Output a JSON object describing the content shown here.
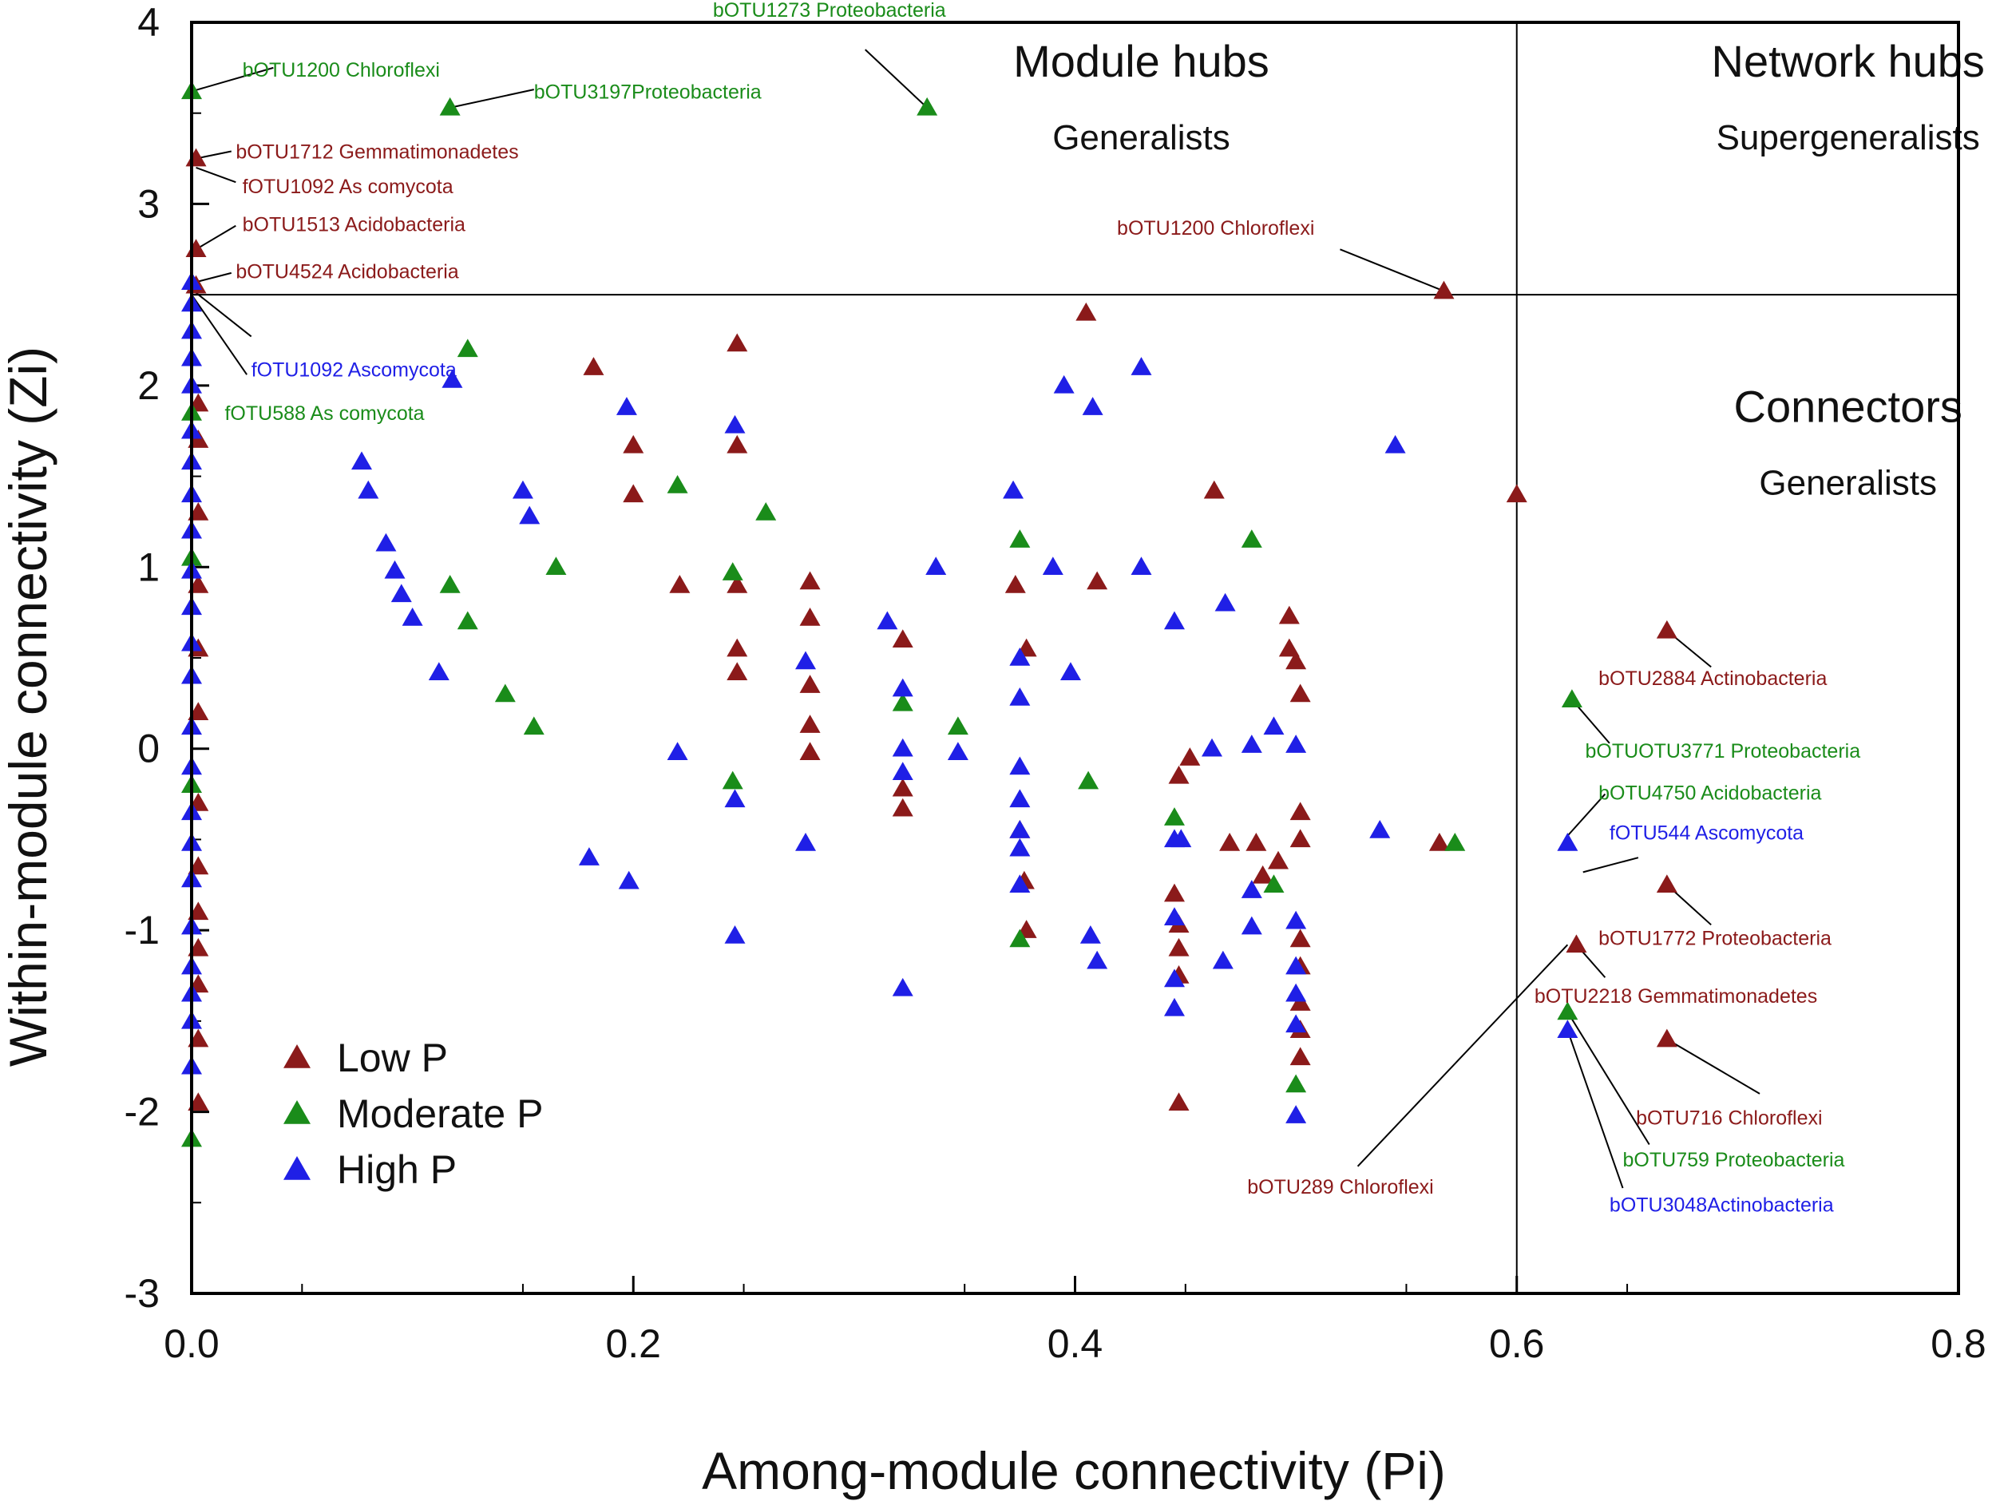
{
  "chart_data": {
    "type": "scatter",
    "xlabel": "Among-module connectivity (Pi)",
    "ylabel": "Within-module connectivity (Zi)",
    "xlim": [
      0,
      0.8
    ],
    "ylim": [
      -3,
      4
    ],
    "x_ticks": [
      "0.0",
      "0.2",
      "0.4",
      "0.6",
      "0.8"
    ],
    "y_ticks": [
      "-3",
      "-2",
      "-1",
      "0",
      "1",
      "2",
      "3",
      "4"
    ],
    "thresholds": {
      "pi": 0.6,
      "zi": 2.5
    },
    "regions": [
      {
        "title": "Module hubs",
        "subtitle": "Generalists",
        "x": 0.43,
        "y": 3.7,
        "y_sub": 3.3
      },
      {
        "title": "Network hubs",
        "subtitle": "Supergeneralists",
        "x": 0.75,
        "y": 3.7,
        "y_sub": 3.3
      },
      {
        "title": "Connectors",
        "subtitle": "Generalists",
        "x": 0.75,
        "y": 1.8,
        "y_sub": 1.4
      }
    ],
    "legend": {
      "position": "bottom-left",
      "entries": [
        {
          "label": "Low P",
          "color": "#8b1a1a"
        },
        {
          "label": "Moderate P",
          "color": "#1a8c1a"
        },
        {
          "label": "High P",
          "color": "#1f1fe6"
        }
      ]
    },
    "series": [
      {
        "name": "Low P",
        "color": "#8b1a1a",
        "points": [
          [
            0.002,
            3.25
          ],
          [
            0.002,
            2.75
          ],
          [
            0.002,
            2.55
          ],
          [
            0.003,
            1.9
          ],
          [
            0.003,
            1.7
          ],
          [
            0.003,
            1.3
          ],
          [
            0.003,
            0.9
          ],
          [
            0.003,
            0.55
          ],
          [
            0.003,
            0.2
          ],
          [
            0.003,
            -0.3
          ],
          [
            0.003,
            -0.65
          ],
          [
            0.003,
            -0.9
          ],
          [
            0.003,
            -1.1
          ],
          [
            0.003,
            -1.3
          ],
          [
            0.003,
            -1.6
          ],
          [
            0.003,
            -1.95
          ],
          [
            0.182,
            2.1
          ],
          [
            0.2,
            1.67
          ],
          [
            0.2,
            1.4
          ],
          [
            0.221,
            0.9
          ],
          [
            0.247,
            2.23
          ],
          [
            0.247,
            1.67
          ],
          [
            0.247,
            0.9
          ],
          [
            0.247,
            0.55
          ],
          [
            0.247,
            0.42
          ],
          [
            0.28,
            0.92
          ],
          [
            0.28,
            0.72
          ],
          [
            0.28,
            0.35
          ],
          [
            0.28,
            0.13
          ],
          [
            0.28,
            -0.02
          ],
          [
            0.322,
            0.6
          ],
          [
            0.322,
            -0.22
          ],
          [
            0.322,
            -0.33
          ],
          [
            0.373,
            0.9
          ],
          [
            0.378,
            0.55
          ],
          [
            0.375,
            -0.45
          ],
          [
            0.377,
            -0.73
          ],
          [
            0.378,
            -1.0
          ],
          [
            0.405,
            2.4
          ],
          [
            0.41,
            0.92
          ],
          [
            0.447,
            -0.15
          ],
          [
            0.445,
            -0.8
          ],
          [
            0.447,
            -0.97
          ],
          [
            0.447,
            -1.1
          ],
          [
            0.447,
            -1.25
          ],
          [
            0.447,
            -1.95
          ],
          [
            0.452,
            -0.05
          ],
          [
            0.463,
            1.42
          ],
          [
            0.47,
            -0.52
          ],
          [
            0.482,
            -0.52
          ],
          [
            0.485,
            -0.7
          ],
          [
            0.492,
            -0.62
          ],
          [
            0.497,
            0.73
          ],
          [
            0.497,
            0.55
          ],
          [
            0.5,
            0.48
          ],
          [
            0.502,
            0.3
          ],
          [
            0.502,
            -0.35
          ],
          [
            0.502,
            -0.5
          ],
          [
            0.502,
            -1.05
          ],
          [
            0.502,
            -1.2
          ],
          [
            0.502,
            -1.4
          ],
          [
            0.502,
            -1.55
          ],
          [
            0.502,
            -1.7
          ],
          [
            0.565,
            -0.52
          ],
          [
            0.567,
            2.52
          ],
          [
            0.6,
            1.4
          ],
          [
            0.627,
            -1.08
          ],
          [
            0.668,
            0.65
          ],
          [
            0.668,
            -0.75
          ],
          [
            0.668,
            -1.6
          ]
        ]
      },
      {
        "name": "Moderate P",
        "color": "#1a8c1a",
        "points": [
          [
            0.0,
            3.62
          ],
          [
            0.0,
            1.85
          ],
          [
            0.0,
            1.05
          ],
          [
            0.0,
            -0.2
          ],
          [
            0.0,
            -2.15
          ],
          [
            0.117,
            3.53
          ],
          [
            0.117,
            0.9
          ],
          [
            0.125,
            0.7
          ],
          [
            0.125,
            2.2
          ],
          [
            0.142,
            0.3
          ],
          [
            0.155,
            0.12
          ],
          [
            0.165,
            1.0
          ],
          [
            0.22,
            1.45
          ],
          [
            0.245,
            0.97
          ],
          [
            0.245,
            -0.18
          ],
          [
            0.26,
            1.3
          ],
          [
            0.322,
            0.25
          ],
          [
            0.333,
            3.53
          ],
          [
            0.347,
            0.12
          ],
          [
            0.375,
            1.15
          ],
          [
            0.375,
            -1.05
          ],
          [
            0.406,
            -0.18
          ],
          [
            0.445,
            -0.38
          ],
          [
            0.48,
            1.15
          ],
          [
            0.49,
            -0.75
          ],
          [
            0.5,
            -1.85
          ],
          [
            0.572,
            -0.52
          ],
          [
            0.625,
            0.27
          ],
          [
            0.623,
            -1.45
          ]
        ]
      },
      {
        "name": "High P",
        "color": "#1f1fe6",
        "points": [
          [
            0.0,
            2.57
          ],
          [
            0.0,
            2.45
          ],
          [
            0.0,
            2.3
          ],
          [
            0.0,
            2.15
          ],
          [
            0.0,
            2.0
          ],
          [
            0.0,
            1.75
          ],
          [
            0.0,
            1.58
          ],
          [
            0.0,
            1.4
          ],
          [
            0.0,
            1.2
          ],
          [
            0.0,
            0.98
          ],
          [
            0.0,
            0.78
          ],
          [
            0.0,
            0.58
          ],
          [
            0.0,
            0.4
          ],
          [
            0.0,
            0.12
          ],
          [
            0.0,
            -0.1
          ],
          [
            0.0,
            -0.35
          ],
          [
            0.0,
            -0.52
          ],
          [
            0.0,
            -0.72
          ],
          [
            0.0,
            -0.98
          ],
          [
            0.0,
            -1.2
          ],
          [
            0.0,
            -1.35
          ],
          [
            0.0,
            -1.5
          ],
          [
            0.0,
            -1.75
          ],
          [
            0.077,
            1.58
          ],
          [
            0.08,
            1.42
          ],
          [
            0.088,
            1.13
          ],
          [
            0.092,
            0.98
          ],
          [
            0.095,
            0.85
          ],
          [
            0.1,
            0.72
          ],
          [
            0.112,
            0.42
          ],
          [
            0.118,
            2.03
          ],
          [
            0.15,
            1.42
          ],
          [
            0.153,
            1.28
          ],
          [
            0.18,
            -0.6
          ],
          [
            0.197,
            1.88
          ],
          [
            0.198,
            -0.73
          ],
          [
            0.22,
            -0.02
          ],
          [
            0.246,
            1.78
          ],
          [
            0.246,
            -0.28
          ],
          [
            0.246,
            -1.03
          ],
          [
            0.278,
            0.48
          ],
          [
            0.278,
            -0.52
          ],
          [
            0.315,
            0.7
          ],
          [
            0.322,
            0.33
          ],
          [
            0.322,
            0.0
          ],
          [
            0.322,
            -0.13
          ],
          [
            0.322,
            -1.32
          ],
          [
            0.337,
            1.0
          ],
          [
            0.347,
            -0.02
          ],
          [
            0.372,
            1.42
          ],
          [
            0.375,
            0.5
          ],
          [
            0.375,
            0.28
          ],
          [
            0.375,
            -0.1
          ],
          [
            0.375,
            -0.28
          ],
          [
            0.375,
            -0.45
          ],
          [
            0.375,
            -0.55
          ],
          [
            0.375,
            -0.75
          ],
          [
            0.395,
            2.0
          ],
          [
            0.39,
            1.0
          ],
          [
            0.398,
            0.42
          ],
          [
            0.407,
            -1.03
          ],
          [
            0.408,
            1.88
          ],
          [
            0.41,
            -1.17
          ],
          [
            0.43,
            2.1
          ],
          [
            0.43,
            1.0
          ],
          [
            0.445,
            0.7
          ],
          [
            0.445,
            -0.5
          ],
          [
            0.445,
            -0.93
          ],
          [
            0.445,
            -1.27
          ],
          [
            0.445,
            -1.43
          ],
          [
            0.448,
            -0.5
          ],
          [
            0.462,
            0.0
          ],
          [
            0.467,
            -1.17
          ],
          [
            0.468,
            0.8
          ],
          [
            0.48,
            0.02
          ],
          [
            0.48,
            -0.78
          ],
          [
            0.48,
            -0.98
          ],
          [
            0.49,
            0.12
          ],
          [
            0.5,
            0.02
          ],
          [
            0.5,
            -0.95
          ],
          [
            0.5,
            -1.2
          ],
          [
            0.5,
            -1.35
          ],
          [
            0.5,
            -1.52
          ],
          [
            0.5,
            -2.02
          ],
          [
            0.538,
            -0.45
          ],
          [
            0.545,
            1.67
          ],
          [
            0.623,
            -0.52
          ],
          [
            0.623,
            -1.55
          ]
        ]
      }
    ],
    "annotations": [
      {
        "text": "bOTU1200 Chloroflexi",
        "color": "#1a8c1a",
        "tx": 0.023,
        "ty": 3.7,
        "px": 0.0,
        "py": 3.62,
        "lx": 0.037,
        "ly": 3.75
      },
      {
        "text": "bOTU1273 Proteobacteria",
        "color": "#1a8c1a",
        "tx": 0.236,
        "ty": 4.03,
        "px": 0.333,
        "py": 3.53,
        "lx": 0.305,
        "ly": 3.85
      },
      {
        "text": "bOTU3197Proteobacteria",
        "color": "#1a8c1a",
        "tx": 0.155,
        "ty": 3.58,
        "px": 0.117,
        "py": 3.53,
        "lx": 0.155,
        "ly": 3.63
      },
      {
        "text": "bOTU1712 Gemmatimonadetes",
        "color": "#8b1a1a",
        "tx": 0.02,
        "ty": 3.25,
        "px": 0.002,
        "py": 3.25,
        "lx": 0.018,
        "ly": 3.29
      },
      {
        "text": "fOTU1092 As comycota",
        "color": "#8b1a1a",
        "tx": 0.023,
        "ty": 3.06,
        "px": 0.002,
        "py": 3.2,
        "lx": 0.02,
        "ly": 3.12
      },
      {
        "text": "bOTU1513 Acidobacteria",
        "color": "#8b1a1a",
        "tx": 0.023,
        "ty": 2.85,
        "px": 0.002,
        "py": 2.75,
        "lx": 0.02,
        "ly": 2.88
      },
      {
        "text": "bOTU4524 Acidobacteria",
        "color": "#8b1a1a",
        "tx": 0.02,
        "ty": 2.59,
        "px": 0.002,
        "py": 2.57,
        "lx": 0.018,
        "ly": 2.62
      },
      {
        "text": "fOTU1092 Ascomycota",
        "color": "#1f1fe6",
        "tx": 0.027,
        "ty": 2.05,
        "px": 0.0,
        "py": 2.53,
        "lx": 0.027,
        "ly": 2.27
      },
      {
        "text": "fOTU588 As comycota",
        "color": "#1a8c1a",
        "tx": 0.015,
        "ty": 1.81,
        "px": 0.0,
        "py": 2.5,
        "lx": 0.025,
        "ly": 2.06
      },
      {
        "text": "bOTU1200 Chloroflexi",
        "color": "#8b1a1a",
        "tx": 0.419,
        "ty": 2.83,
        "px": 0.567,
        "py": 2.52,
        "lx": 0.52,
        "ly": 2.75
      },
      {
        "text": "bOTU2884 Actinobacteria",
        "color": "#8b1a1a",
        "tx": 0.637,
        "ty": 0.35,
        "px": 0.668,
        "py": 0.65,
        "lx": 0.688,
        "ly": 0.45
      },
      {
        "text": "bOTUOTU3771 Proteobacteria",
        "color": "#1a8c1a",
        "tx": 0.631,
        "ty": -0.05,
        "px": 0.625,
        "py": 0.27,
        "lx": 0.642,
        "ly": 0.03
      },
      {
        "text": "bOTU4750 Acidobacteria",
        "color": "#1a8c1a",
        "tx": 0.637,
        "ty": -0.28,
        "px": 0.623,
        "py": -0.48,
        "lx": 0.64,
        "ly": -0.25
      },
      {
        "text": "fOTU544 Ascomycota",
        "color": "#1f1fe6",
        "tx": 0.642,
        "ty": -0.5,
        "px": 0.63,
        "py": -0.68,
        "lx": 0.655,
        "ly": -0.6
      },
      {
        "text": "bOTU1772 Proteobacteria",
        "color": "#8b1a1a",
        "tx": 0.637,
        "ty": -1.08,
        "px": 0.668,
        "py": -0.75,
        "lx": 0.688,
        "ly": -0.97
      },
      {
        "text": "bOTU2218 Gemmatimonadetes",
        "color": "#8b1a1a",
        "tx": 0.608,
        "ty": -1.4,
        "px": 0.627,
        "py": -1.08,
        "lx": 0.64,
        "ly": -1.26
      },
      {
        "text": "bOTU716 Chloroflexi",
        "color": "#8b1a1a",
        "tx": 0.654,
        "ty": -2.07,
        "px": 0.668,
        "py": -1.6,
        "lx": 0.71,
        "ly": -1.9
      },
      {
        "text": "bOTU759 Proteobacteria",
        "color": "#1a8c1a",
        "tx": 0.648,
        "ty": -2.3,
        "px": 0.623,
        "py": -1.45,
        "lx": 0.66,
        "ly": -2.18
      },
      {
        "text": "bOTU3048Actinobacteria",
        "color": "#1f1fe6",
        "tx": 0.642,
        "ty": -2.55,
        "px": 0.623,
        "py": -1.55,
        "lx": 0.648,
        "ly": -2.42
      },
      {
        "text": "bOTU289 Chloroflexi",
        "color": "#8b1a1a",
        "tx": 0.478,
        "ty": -2.45,
        "px": 0.623,
        "py": -1.08,
        "lx": 0.528,
        "ly": -2.3
      }
    ]
  }
}
